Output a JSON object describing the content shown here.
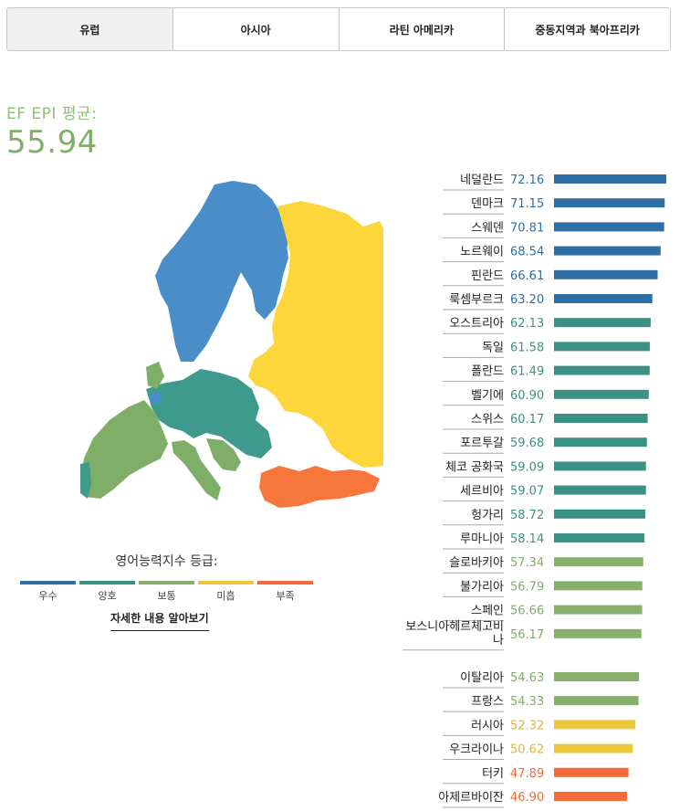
{
  "tabs": [
    {
      "label": "유럽",
      "active": true
    },
    {
      "label": "아시아",
      "active": false
    },
    {
      "label": "라틴 아메리카",
      "active": false
    },
    {
      "label": "중동지역과 북아프리카",
      "active": false
    }
  ],
  "average": {
    "label": "EF EPI 평균:",
    "value": "55.94"
  },
  "legend": {
    "title": "영어능력지수 등급:",
    "items": [
      {
        "label": "우수",
        "color": "#2d6fa6"
      },
      {
        "label": "양호",
        "color": "#3b9183"
      },
      {
        "label": "보통",
        "color": "#88b06a"
      },
      {
        "label": "미흡",
        "color": "#ecc73b"
      },
      {
        "label": "부족",
        "color": "#f26b38"
      }
    ]
  },
  "more_link": "자세한 내용 알아보기",
  "chart_data": {
    "type": "bar",
    "orientation": "horizontal",
    "categories": [
      "네덜란드",
      "덴마크",
      "스웨덴",
      "노르웨이",
      "핀란드",
      "룩셈부르크",
      "오스트리아",
      "독일",
      "폴란드",
      "벨기에",
      "스위스",
      "포르투갈",
      "체코 공화국",
      "세르비아",
      "헝가리",
      "루마니아",
      "슬로바키아",
      "불가리아",
      "스페인",
      "보스니아헤르체고비나",
      "이탈리아",
      "프랑스",
      "러시아",
      "우크라이나",
      "터키",
      "아제르바이잔"
    ],
    "values": [
      72.16,
      71.15,
      70.81,
      68.54,
      66.61,
      63.2,
      62.13,
      61.58,
      61.49,
      60.9,
      60.17,
      59.68,
      59.09,
      59.07,
      58.72,
      58.14,
      57.34,
      56.79,
      56.66,
      56.17,
      54.63,
      54.33,
      52.32,
      50.62,
      47.89,
      46.9
    ],
    "value_labels": [
      "72.16",
      "71.15",
      "70.81",
      "68.54",
      "66.61",
      "63.20",
      "62.13",
      "61.58",
      "61.49",
      "60.90",
      "60.17",
      "59.68",
      "59.09",
      "59.07",
      "58.72",
      "58.14",
      "57.34",
      "56.79",
      "56.66",
      "56.17",
      "54.63",
      "54.33",
      "52.32",
      "50.62",
      "47.89",
      "46.90"
    ],
    "levels": [
      0,
      0,
      0,
      0,
      0,
      0,
      1,
      1,
      1,
      1,
      1,
      1,
      1,
      1,
      1,
      1,
      2,
      2,
      2,
      2,
      2,
      2,
      3,
      3,
      4,
      4
    ],
    "level_colors": [
      "#2d6fa6",
      "#3b9183",
      "#88b06a",
      "#ecc73b",
      "#f26b38"
    ],
    "text_colors": [
      "#2d6fa6",
      "#3b9183",
      "#7fae68",
      "#e0b82a",
      "#f26b38"
    ]
  }
}
